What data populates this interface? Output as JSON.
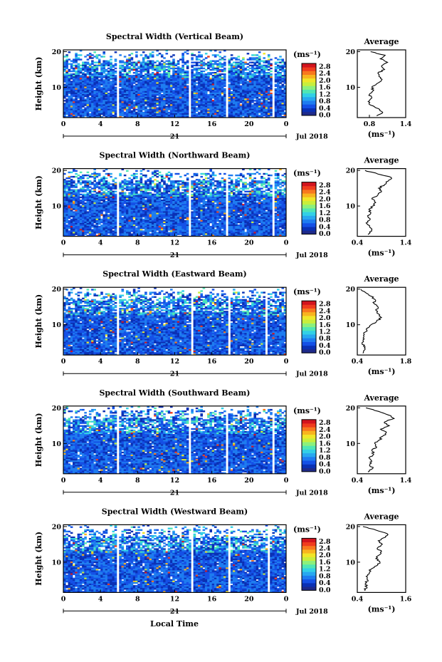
{
  "figure": {
    "date_label": "Jul 2018",
    "day_label": "21",
    "xlabel": "Local Time",
    "ylabel": "Height (km)",
    "xticks": [
      "0",
      "4",
      "8",
      "12",
      "16",
      "20",
      "0"
    ],
    "yticks": [
      "10",
      "20"
    ],
    "colorbar": {
      "unit": "(ms⁻¹)",
      "ticks": [
        "2.8",
        "2.4",
        "2.0",
        "1.6",
        "1.2",
        "0.8",
        "0.4",
        "0.0"
      ],
      "colors": [
        "#1e2a8a",
        "#0a30b4",
        "#1450e6",
        "#1e7cf0",
        "#28a8f0",
        "#32d0e6",
        "#50e6b4",
        "#8cf07c",
        "#c8ee3c",
        "#f0e628",
        "#f8b41e",
        "#f8781e",
        "#f03c1e",
        "#d2141e"
      ]
    },
    "profile_title": "Average",
    "profile_unit": "(ms⁻¹)"
  },
  "chart_data": [
    {
      "type": "heatmap",
      "title": "Spectral Width (Vertical Beam)",
      "xlabel": "Local Time",
      "ylabel": "Height (km)",
      "xlim": [
        0,
        24
      ],
      "ylim": [
        1.5,
        20.5
      ],
      "clim": [
        0.0,
        2.8
      ],
      "gaps_hours": [
        5.8,
        13.7,
        17.6,
        22.6
      ],
      "profile": {
        "title": "Average",
        "xlim": [
          0.6,
          1.4
        ],
        "xticks": [
          "0.8",
          "1.4"
        ],
        "heights": [
          2,
          3,
          4,
          5,
          6,
          7,
          8,
          9,
          10,
          11,
          12,
          13,
          14,
          15,
          16,
          17,
          18,
          19,
          20
        ],
        "values": [
          0.92,
          1.02,
          0.95,
          0.82,
          0.78,
          0.84,
          0.8,
          0.86,
          0.84,
          0.92,
          1.0,
          0.96,
          0.94,
          1.05,
          1.0,
          1.1,
          0.98,
          1.06,
          0.82
        ]
      }
    },
    {
      "type": "heatmap",
      "title": "Spectral Width (Northward Beam)",
      "xlabel": "Local Time",
      "ylabel": "Height (km)",
      "xlim": [
        0,
        24
      ],
      "ylim": [
        1.5,
        20.5
      ],
      "clim": [
        0.0,
        2.8
      ],
      "gaps_hours": [
        5.8,
        13.7,
        17.6,
        22.6
      ],
      "profile": {
        "title": "Average",
        "xlim": [
          0.4,
          1.4
        ],
        "xticks": [
          "0.4",
          "1.4"
        ],
        "heights": [
          2,
          3,
          4,
          5,
          6,
          7,
          8,
          9,
          10,
          11,
          12,
          13,
          14,
          15,
          16,
          17,
          18,
          19,
          20
        ],
        "values": [
          0.62,
          0.7,
          0.66,
          0.6,
          0.65,
          0.62,
          0.68,
          0.64,
          0.72,
          0.78,
          0.7,
          0.82,
          0.9,
          0.84,
          0.96,
          1.04,
          1.1,
          0.82,
          0.56
        ]
      }
    },
    {
      "type": "heatmap",
      "title": "Spectral Width (Eastward Beam)",
      "xlabel": "Local Time",
      "ylabel": "Height (km)",
      "xlim": [
        0,
        24
      ],
      "ylim": [
        1.5,
        20.5
      ],
      "clim": [
        0.0,
        2.8
      ],
      "gaps_hours": [
        5.8,
        13.9,
        17.8,
        21.8
      ],
      "profile": {
        "title": "Average",
        "xlim": [
          0.4,
          1.8
        ],
        "xticks": [
          "0.4",
          "1.8"
        ],
        "heights": [
          2,
          3,
          4,
          5,
          6,
          7,
          8,
          9,
          10,
          11,
          12,
          13,
          14,
          15,
          16,
          17,
          18,
          19,
          20
        ],
        "values": [
          0.56,
          0.62,
          0.58,
          0.54,
          0.6,
          0.58,
          0.64,
          0.68,
          0.8,
          0.96,
          1.1,
          1.02,
          0.94,
          1.0,
          0.88,
          0.92,
          0.8,
          0.64,
          0.5
        ]
      }
    },
    {
      "type": "heatmap",
      "title": "Spectral Width (Southward Beam)",
      "xlabel": "Local Time",
      "ylabel": "Height (km)",
      "xlim": [
        0,
        24
      ],
      "ylim": [
        1.5,
        20.5
      ],
      "clim": [
        0.0,
        2.8
      ],
      "gaps_hours": [
        5.8,
        13.7,
        17.6,
        22.6
      ],
      "profile": {
        "title": "Average",
        "xlim": [
          0.4,
          1.4
        ],
        "xticks": [
          "0.4",
          "1.4"
        ],
        "heights": [
          2,
          3,
          4,
          5,
          6,
          7,
          8,
          9,
          10,
          11,
          12,
          13,
          14,
          15,
          16,
          17,
          18,
          19,
          20
        ],
        "values": [
          0.62,
          0.72,
          0.66,
          0.7,
          0.64,
          0.74,
          0.7,
          0.8,
          0.76,
          0.86,
          0.92,
          1.0,
          0.88,
          1.06,
          0.96,
          1.16,
          1.04,
          0.84,
          0.58
        ]
      }
    },
    {
      "type": "heatmap",
      "title": "Spectral Width (Westward Beam)",
      "xlabel": "Local Time",
      "ylabel": "Height (km)",
      "xlim": [
        0,
        24
      ],
      "ylim": [
        1.5,
        20.5
      ],
      "clim": [
        0.0,
        2.8
      ],
      "gaps_hours": [
        5.8,
        13.8,
        17.8,
        22.2
      ],
      "profile": {
        "title": "Average",
        "xlim": [
          0.4,
          1.6
        ],
        "xticks": [
          "0.4",
          "1.6"
        ],
        "heights": [
          2,
          3,
          4,
          5,
          6,
          7,
          8,
          9,
          10,
          11,
          12,
          13,
          14,
          15,
          16,
          17,
          18,
          19,
          20
        ],
        "values": [
          0.58,
          0.64,
          0.6,
          0.66,
          0.62,
          0.7,
          0.74,
          0.88,
          0.96,
          0.86,
          0.94,
          1.0,
          0.9,
          1.02,
          0.92,
          1.1,
          1.14,
          0.86,
          0.54
        ]
      }
    }
  ]
}
